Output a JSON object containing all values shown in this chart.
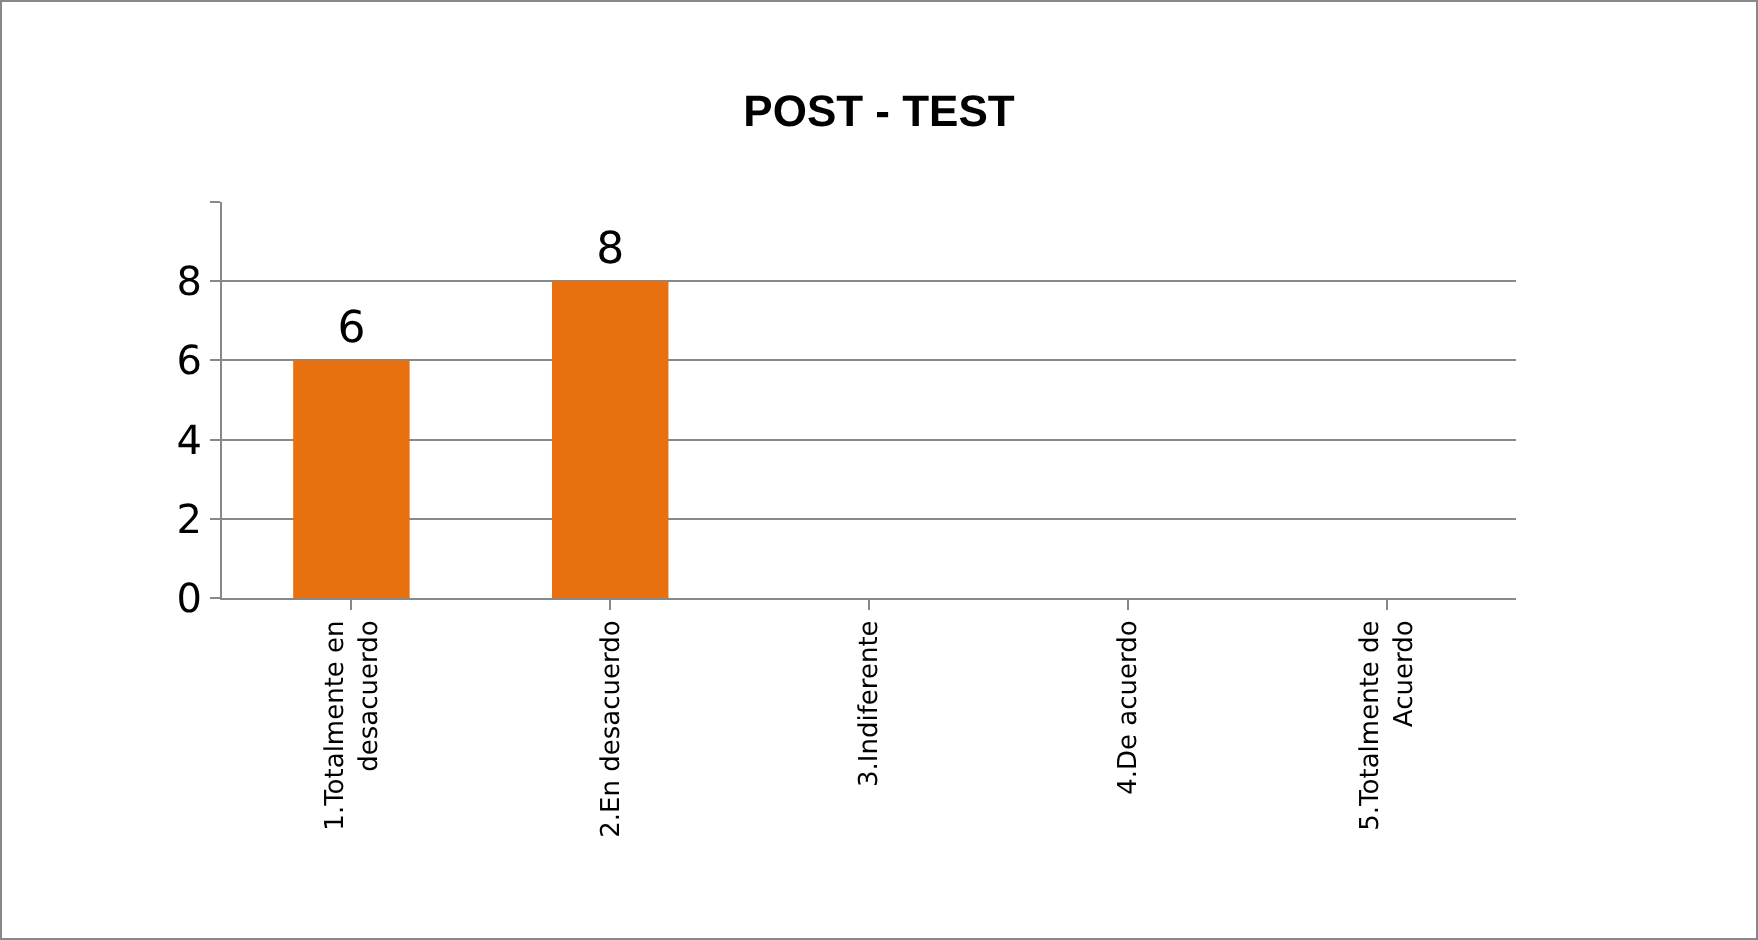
{
  "chart_data": {
    "type": "bar",
    "title": "POST - TEST",
    "categories": [
      "1.Totalmente en desacuerdo",
      "2.En desacuerdo",
      "3.Indiferente",
      "4.De acuerdo",
      "5.Totalmente de Acuerdo"
    ],
    "values": [
      6,
      8,
      0,
      0,
      0
    ],
    "value_labels": [
      "6",
      "8",
      null,
      null,
      null
    ],
    "color": "#e8700e",
    "ylim": [
      0,
      10
    ],
    "yticks": [
      0,
      2,
      4,
      6,
      8,
      {
        "value": 10,
        "label": null
      }
    ],
    "grid": "y"
  }
}
